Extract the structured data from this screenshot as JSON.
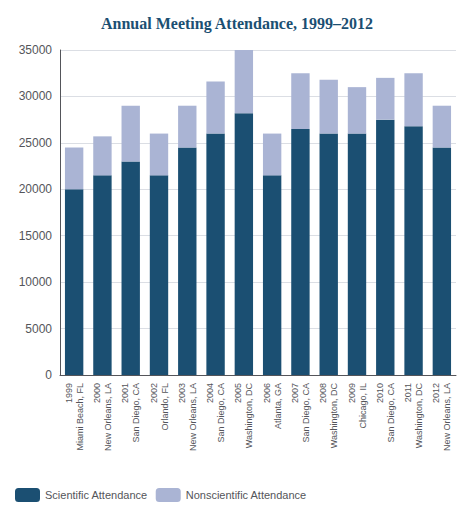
{
  "chart_data": {
    "type": "bar",
    "title": "Annual Meeting Attendance, 1999–2012",
    "categories": [
      "1999\nMiami Beach, FL",
      "2000\nNew Orleans, LA",
      "2001\nSan Diego, CA",
      "2002\nOrlando, FL",
      "2003\nNew Orleans, LA",
      "2004\nSan Diego, CA",
      "2005\nWashington, DC",
      "2006\nAtlanta, GA",
      "2007\nSan Diego, CA",
      "2008\nWashington, DC",
      "2009\nChicago, IL",
      "2010\nSan Diego, CA",
      "2011\nWashington, DC",
      "2012\nNew Orleans, LA"
    ],
    "series": [
      {
        "name": "Scientific Attendance",
        "color": "#1b4f72",
        "values": [
          20000,
          21500,
          23000,
          21500,
          24500,
          26000,
          28200,
          21500,
          26500,
          26000,
          26000,
          27500,
          26800,
          24500
        ]
      },
      {
        "name": "Nonscientific Attendance",
        "color": "#aab4d4",
        "values": [
          4500,
          4200,
          6000,
          4500,
          4500,
          5600,
          6800,
          4500,
          6000,
          5800,
          5000,
          4500,
          5700,
          4500
        ]
      }
    ],
    "stacked": true,
    "ylim": [
      0,
      35000
    ],
    "yticks": [
      0,
      5000,
      10000,
      15000,
      20000,
      25000,
      30000,
      35000
    ],
    "grid": true,
    "legend": "lower left"
  }
}
